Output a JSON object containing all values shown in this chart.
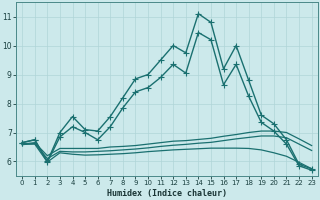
{
  "xlabel": "Humidex (Indice chaleur)",
  "bg": "#cce9eb",
  "grid_color": "#b0d5d8",
  "line_color": "#1a7070",
  "xlim": [
    -0.5,
    23.5
  ],
  "ylim": [
    5.5,
    11.5
  ],
  "yticks": [
    6,
    7,
    8,
    9,
    10,
    11
  ],
  "xticks": [
    0,
    1,
    2,
    3,
    4,
    5,
    6,
    7,
    8,
    9,
    10,
    11,
    12,
    13,
    14,
    15,
    16,
    17,
    18,
    19,
    20,
    21,
    22,
    23
  ],
  "lines": [
    {
      "x": [
        0,
        1,
        2,
        3,
        4,
        5,
        6,
        7,
        8,
        9,
        10,
        11,
        12,
        13,
        14,
        15,
        16,
        17,
        18,
        19,
        20,
        21,
        22,
        23
      ],
      "y": [
        6.65,
        6.75,
        6.0,
        7.0,
        7.55,
        7.1,
        7.05,
        7.55,
        8.2,
        8.85,
        9.0,
        9.5,
        10.0,
        9.75,
        11.1,
        10.8,
        9.2,
        10.0,
        8.8,
        7.6,
        7.3,
        6.75,
        5.9,
        5.75
      ],
      "marker": "+",
      "lw": 1.0,
      "ms": 4.0,
      "dashed": false
    },
    {
      "x": [
        0,
        1,
        2,
        3,
        4,
        5,
        6,
        7,
        8,
        9,
        10,
        11,
        12,
        13,
        14,
        15,
        16,
        17,
        18,
        19,
        20,
        21,
        22,
        23
      ],
      "y": [
        6.65,
        6.75,
        5.98,
        6.85,
        7.2,
        7.0,
        6.75,
        7.2,
        7.85,
        8.4,
        8.55,
        8.9,
        9.35,
        9.05,
        10.45,
        10.2,
        8.65,
        9.35,
        8.25,
        7.35,
        7.05,
        6.6,
        5.85,
        5.7
      ],
      "marker": "+",
      "lw": 1.0,
      "ms": 4.0,
      "dashed": false
    },
    {
      "x": [
        0,
        1,
        2,
        3,
        4,
        5,
        6,
        7,
        8,
        9,
        10,
        11,
        12,
        13,
        14,
        15,
        16,
        17,
        18,
        19,
        20,
        21,
        22,
        23
      ],
      "y": [
        6.6,
        6.65,
        6.2,
        6.45,
        6.45,
        6.45,
        6.45,
        6.5,
        6.52,
        6.55,
        6.6,
        6.65,
        6.7,
        6.72,
        6.76,
        6.8,
        6.87,
        6.93,
        7.0,
        7.05,
        7.05,
        7.0,
        6.78,
        6.55
      ],
      "marker": null,
      "lw": 0.9,
      "ms": 0,
      "dashed": false
    },
    {
      "x": [
        0,
        1,
        2,
        3,
        4,
        5,
        6,
        7,
        8,
        9,
        10,
        11,
        12,
        13,
        14,
        15,
        16,
        17,
        18,
        19,
        20,
        21,
        22,
        23
      ],
      "y": [
        6.58,
        6.62,
        6.1,
        6.35,
        6.33,
        6.33,
        6.35,
        6.37,
        6.4,
        6.43,
        6.47,
        6.52,
        6.56,
        6.59,
        6.63,
        6.66,
        6.72,
        6.78,
        6.83,
        6.88,
        6.88,
        6.82,
        6.6,
        6.38
      ],
      "marker": null,
      "lw": 0.9,
      "ms": 0,
      "dashed": false
    },
    {
      "x": [
        0,
        1,
        2,
        3,
        4,
        5,
        6,
        7,
        8,
        9,
        10,
        11,
        12,
        13,
        14,
        15,
        16,
        17,
        18,
        19,
        20,
        21,
        22,
        23
      ],
      "y": [
        6.6,
        6.6,
        5.98,
        6.3,
        6.25,
        6.22,
        6.23,
        6.25,
        6.27,
        6.3,
        6.34,
        6.37,
        6.4,
        6.42,
        6.44,
        6.46,
        6.46,
        6.46,
        6.45,
        6.4,
        6.3,
        6.18,
        5.97,
        5.75
      ],
      "marker": null,
      "lw": 0.9,
      "ms": 0,
      "dashed": false
    }
  ]
}
